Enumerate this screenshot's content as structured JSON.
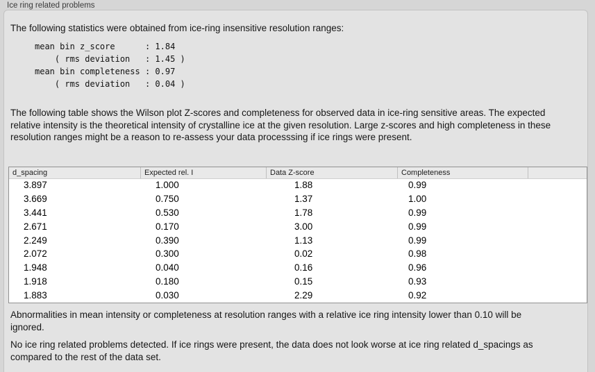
{
  "panel": {
    "title": "Ice ring related problems"
  },
  "intro": {
    "text": "The following statistics were obtained from ice-ring insensitive resolution ranges:"
  },
  "stats_block": {
    "lines": [
      "mean bin z_score      : 1.84",
      "    ( rms deviation   : 1.45 )",
      "mean bin completeness : 0.97",
      "    ( rms deviation   : 0.04 )"
    ]
  },
  "table_description": "The following table shows the Wilson plot Z-scores and completeness for observed data in ice-ring sensitive areas. The expected relative intensity is the theoretical intensity of crystalline ice at the given resolution. Large z-scores and high completeness in these resolution ranges might be a reason to re-assess your data processsing if ice rings were present.",
  "table": {
    "columns": [
      "d_spacing",
      "Expected rel. I",
      "Data Z-score",
      "Completeness",
      ""
    ],
    "rows": [
      {
        "d_spacing": "3.897",
        "expected_rel_i": "1.000",
        "data_z_score": "1.88",
        "completeness": "0.99"
      },
      {
        "d_spacing": "3.669",
        "expected_rel_i": "0.750",
        "data_z_score": "1.37",
        "completeness": "1.00"
      },
      {
        "d_spacing": "3.441",
        "expected_rel_i": "0.530",
        "data_z_score": "1.78",
        "completeness": "0.99"
      },
      {
        "d_spacing": "2.671",
        "expected_rel_i": "0.170",
        "data_z_score": "3.00",
        "completeness": "0.99"
      },
      {
        "d_spacing": "2.249",
        "expected_rel_i": "0.390",
        "data_z_score": "1.13",
        "completeness": "0.99"
      },
      {
        "d_spacing": "2.072",
        "expected_rel_i": "0.300",
        "data_z_score": "0.02",
        "completeness": "0.98"
      },
      {
        "d_spacing": "1.948",
        "expected_rel_i": "0.040",
        "data_z_score": "0.16",
        "completeness": "0.96"
      },
      {
        "d_spacing": "1.918",
        "expected_rel_i": "0.180",
        "data_z_score": "0.15",
        "completeness": "0.93"
      },
      {
        "d_spacing": "1.883",
        "expected_rel_i": "0.030",
        "data_z_score": "2.29",
        "completeness": "0.92"
      }
    ]
  },
  "notes": [
    "Abnormalities in mean intensity or completeness at resolution ranges with a relative ice ring intensity lower than 0.10 will be ignored.",
    "No ice ring related problems detected. If ice rings were present, the data does not look worse at ice ring related d_spacings as compared to the rest of the data set."
  ]
}
